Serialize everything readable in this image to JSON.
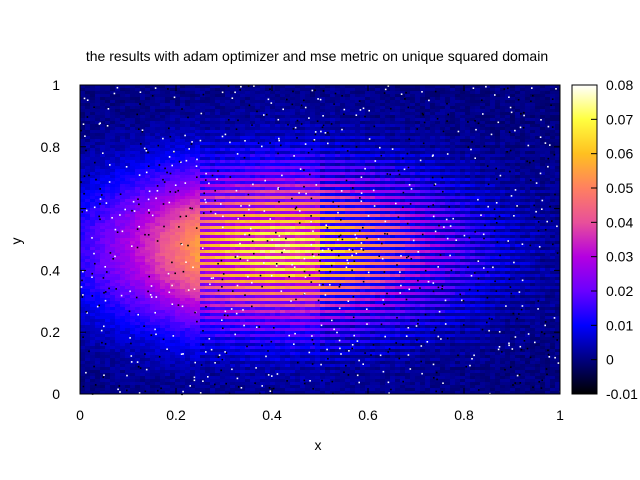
{
  "chart_data": {
    "type": "heatmap",
    "title": "the results with adam optimizer and mse metric on unique squared domain",
    "xlabel": "x",
    "ylabel": "y",
    "xlim": [
      0,
      1
    ],
    "ylim": [
      0,
      1
    ],
    "x_ticks": [
      "0",
      "0.2",
      "0.4",
      "0.6",
      "0.8",
      "1"
    ],
    "x_tick_values": [
      0,
      0.2,
      0.4,
      0.6,
      0.8,
      1
    ],
    "y_ticks": [
      "0",
      "0.2",
      "0.4",
      "0.6",
      "0.8",
      "1"
    ],
    "y_tick_values": [
      0,
      0.2,
      0.4,
      0.6,
      0.8,
      1
    ],
    "colorbar": {
      "range": [
        -0.01,
        0.08
      ],
      "ticks": [
        "-0.01",
        "0",
        "0.01",
        "0.02",
        "0.03",
        "0.04",
        "0.05",
        "0.06",
        "0.07",
        "0.08"
      ],
      "tick_values": [
        -0.01,
        0,
        0.01,
        0.02,
        0.03,
        0.04,
        0.05,
        0.06,
        0.07,
        0.08
      ],
      "palette": [
        "#000000",
        "#00007f",
        "#0000ff",
        "#6a00ff",
        "#b400e0",
        "#e8509a",
        "#ff8060",
        "#ffc020",
        "#ffff40",
        "#ffffff"
      ]
    },
    "peak_value": 0.072,
    "peak_x": 0.42,
    "peak_y": 0.47,
    "grid": false,
    "legend": "none"
  }
}
